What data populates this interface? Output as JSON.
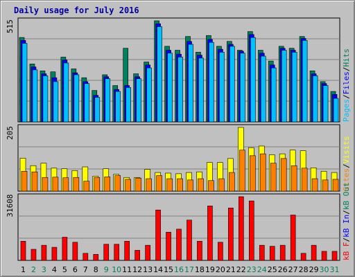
{
  "title": "Daily usage for July 2016",
  "colors": {
    "hits": "#00805c",
    "files": "#0000ff",
    "pages": "#00c0ff",
    "visits": "#ffff00",
    "sites": "#ff8000",
    "kbin": "#0000ff",
    "kbout": "#00805c",
    "kbf": "#ff0000",
    "panel": "#c0c0c0",
    "grid": "#808080"
  },
  "chart_data": [
    {
      "type": "bar",
      "panel": "hits-files-pages",
      "ylabel_max": "515",
      "ylim": [
        0,
        515
      ],
      "legend": [
        "Pages",
        "/",
        "Files",
        "/",
        "Hits"
      ],
      "categories": [
        "1",
        "2",
        "3",
        "4",
        "5",
        "6",
        "7",
        "8",
        "9",
        "10",
        "11",
        "12",
        "13",
        "14",
        "15",
        "16",
        "17",
        "18",
        "19",
        "20",
        "21",
        "22",
        "23",
        "24",
        "25",
        "26",
        "27",
        "28",
        "29",
        "30",
        "31"
      ],
      "series": [
        {
          "name": "Hits",
          "values": [
            430,
            295,
            260,
            255,
            330,
            270,
            225,
            160,
            240,
            185,
            375,
            245,
            305,
            515,
            385,
            365,
            435,
            355,
            440,
            385,
            410,
            365,
            460,
            365,
            310,
            385,
            375,
            435,
            260,
            205,
            155
          ]
        },
        {
          "name": "Files",
          "values": [
            415,
            280,
            245,
            225,
            315,
            250,
            205,
            135,
            230,
            165,
            185,
            230,
            290,
            500,
            365,
            345,
            410,
            340,
            420,
            370,
            395,
            360,
            445,
            350,
            290,
            375,
            365,
            425,
            245,
            195,
            140
          ]
        },
        {
          "name": "Pages",
          "values": [
            400,
            265,
            235,
            205,
            300,
            240,
            195,
            125,
            220,
            155,
            175,
            220,
            275,
            485,
            350,
            330,
            395,
            325,
            405,
            355,
            385,
            350,
            430,
            335,
            275,
            365,
            355,
            415,
            235,
            185,
            120
          ]
        }
      ]
    },
    {
      "type": "bar",
      "panel": "visits-sites",
      "ylabel_max": "205",
      "ylim": [
        0,
        205
      ],
      "legend": [
        "Sites",
        "/",
        "Visits"
      ],
      "categories": [
        "1",
        "2",
        "3",
        "4",
        "5",
        "6",
        "7",
        "8",
        "9",
        "10",
        "11",
        "12",
        "13",
        "14",
        "15",
        "16",
        "17",
        "18",
        "19",
        "20",
        "21",
        "22",
        "23",
        "24",
        "25",
        "26",
        "27",
        "28",
        "29",
        "30",
        "31"
      ],
      "series": [
        {
          "name": "Visits",
          "values": [
            106,
            82,
            90,
            74,
            72,
            66,
            78,
            48,
            72,
            54,
            44,
            44,
            70,
            60,
            58,
            56,
            60,
            62,
            92,
            92,
            105,
            205,
            140,
            145,
            117,
            120,
            132,
            130,
            75,
            64,
            60
          ]
        },
        {
          "name": "Sites",
          "values": [
            64,
            62,
            44,
            45,
            43,
            44,
            32,
            44,
            46,
            50,
            38,
            42,
            40,
            50,
            40,
            40,
            36,
            40,
            34,
            40,
            60,
            132,
            114,
            120,
            90,
            105,
            82,
            74,
            40,
            36,
            38
          ]
        }
      ]
    },
    {
      "type": "bar",
      "panel": "kbf",
      "ylabel_max": "31608",
      "ylim": [
        0,
        31608
      ],
      "legend": [
        "kB F",
        "/",
        "kB In",
        "/",
        "kB Out"
      ],
      "categories": [
        "1",
        "2",
        "3",
        "4",
        "5",
        "6",
        "7",
        "8",
        "9",
        "10",
        "11",
        "12",
        "13",
        "14",
        "15",
        "16",
        "17",
        "18",
        "19",
        "20",
        "21",
        "22",
        "23",
        "24",
        "25",
        "26",
        "27",
        "28",
        "29",
        "30",
        "31"
      ],
      "series": [
        {
          "name": "kB F",
          "values": [
            9500,
            5500,
            7500,
            6500,
            11500,
            9000,
            3500,
            3000,
            8000,
            8000,
            9500,
            5000,
            7500,
            25000,
            14000,
            15500,
            20000,
            9500,
            27000,
            9000,
            26000,
            31608,
            29500,
            7500,
            7000,
            7500,
            22500,
            3500,
            7500,
            4500,
            4500
          ]
        }
      ]
    }
  ]
}
